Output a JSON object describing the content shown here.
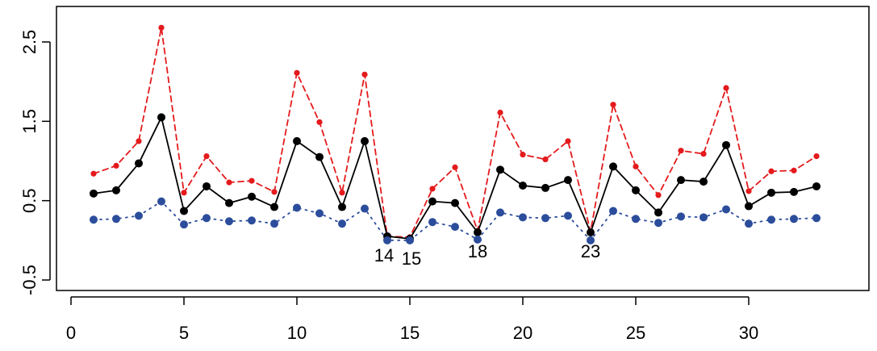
{
  "chart_data": {
    "type": "line",
    "title": "",
    "xlabel": "",
    "ylabel": "",
    "xlim": [
      0,
      34
    ],
    "ylim": [
      -0.6,
      3.0
    ],
    "x_ticks": [
      0,
      5,
      10,
      15,
      20,
      25,
      30
    ],
    "x_tick_labels": [
      "0",
      "5",
      "10",
      "15",
      "20",
      "25",
      "30"
    ],
    "y_ticks": [
      -0.5,
      0.5,
      1.5,
      2.5
    ],
    "y_tick_labels": [
      "-0.5",
      "0.5",
      "1.5",
      "2.5"
    ],
    "grid": false,
    "legend": "none",
    "x": [
      1,
      2,
      3,
      4,
      5,
      6,
      7,
      8,
      9,
      10,
      11,
      12,
      13,
      14,
      15,
      16,
      17,
      18,
      19,
      20,
      21,
      22,
      23,
      24,
      25,
      26,
      27,
      28,
      29,
      30,
      31,
      32,
      33
    ],
    "series": [
      {
        "color": "#e41a1c",
        "line_style": "dashed",
        "marker_size": "small",
        "values": [
          0.84,
          0.94,
          1.25,
          2.68,
          0.6,
          1.06,
          0.73,
          0.75,
          0.61,
          2.11,
          1.49,
          0.6,
          2.09,
          0.05,
          0.04,
          0.65,
          0.92,
          0.12,
          1.61,
          1.08,
          1.02,
          1.25,
          0.11,
          1.71,
          0.93,
          0.57,
          1.13,
          1.09,
          1.92,
          0.62,
          0.87,
          0.88,
          1.06
        ]
      },
      {
        "color": "#000000",
        "line_style": "solid",
        "marker_size": "medium",
        "values": [
          0.59,
          0.63,
          0.97,
          1.55,
          0.37,
          0.68,
          0.47,
          0.55,
          0.42,
          1.25,
          1.05,
          0.42,
          1.25,
          0.05,
          0.02,
          0.49,
          0.47,
          0.1,
          0.89,
          0.69,
          0.66,
          0.76,
          0.1,
          0.93,
          0.63,
          0.35,
          0.76,
          0.74,
          1.2,
          0.43,
          0.6,
          0.61,
          0.68
        ]
      },
      {
        "color": "#2b4d9b",
        "line_style": "dotted",
        "marker_size": "medium",
        "values": [
          0.26,
          0.27,
          0.31,
          0.49,
          0.2,
          0.28,
          0.24,
          0.25,
          0.21,
          0.41,
          0.34,
          0.21,
          0.4,
          0.0,
          0.0,
          0.23,
          0.17,
          0.01,
          0.35,
          0.29,
          0.28,
          0.31,
          0.0,
          0.37,
          0.27,
          0.22,
          0.3,
          0.29,
          0.39,
          0.21,
          0.26,
          0.27,
          0.28
        ]
      }
    ],
    "annotations": [
      {
        "text": "14",
        "x": 14,
        "y": 0.0
      },
      {
        "text": "15",
        "x": 15,
        "y": 0.0
      },
      {
        "text": "18",
        "x": 18,
        "y": 0.01
      },
      {
        "text": "23",
        "x": 23,
        "y": 0.0
      }
    ]
  }
}
